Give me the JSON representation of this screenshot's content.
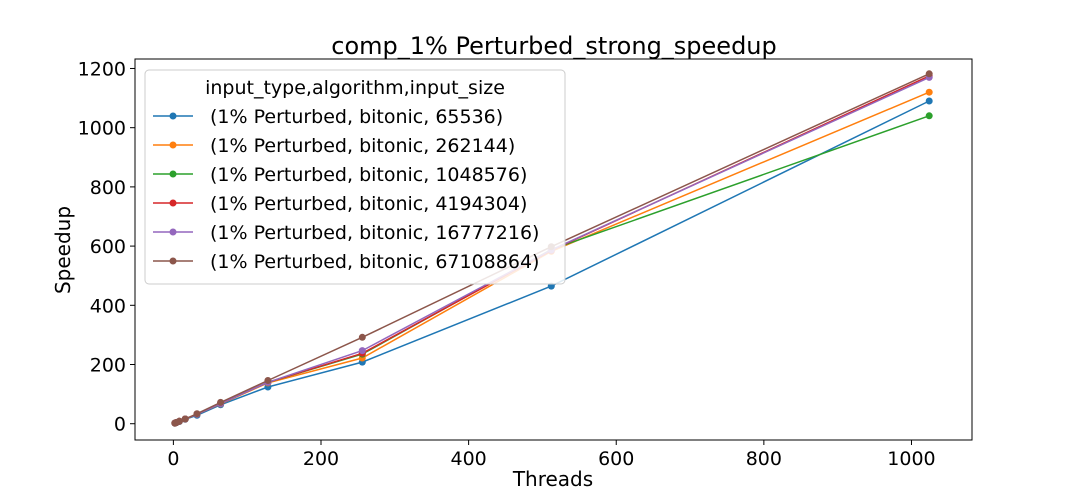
{
  "chart_data": {
    "type": "line",
    "title": "comp_1% Perturbed_strong_speedup",
    "xlabel": "Threads",
    "ylabel": "Speedup",
    "xlim": [
      -52,
      1082
    ],
    "ylim": [
      -55,
      1232
    ],
    "xticks": [
      0,
      200,
      400,
      600,
      800,
      1000
    ],
    "yticks": [
      0,
      200,
      400,
      600,
      800,
      1000,
      1200
    ],
    "x": [
      2,
      4,
      8,
      16,
      32,
      64,
      128,
      256,
      512,
      1024
    ],
    "legend": {
      "title": "input_type,algorithm,input_size",
      "placement": "upper left"
    },
    "series": [
      {
        "name": "(1% Perturbed, bitonic, 65536)",
        "color": "#1f77b4",
        "values": [
          1.9,
          3.8,
          7.5,
          14.8,
          28.5,
          64,
          124,
          208,
          465,
          1090
        ]
      },
      {
        "name": "(1% Perturbed, bitonic, 262144)",
        "color": "#ff7f0e",
        "values": [
          2,
          4,
          8,
          16,
          32,
          67,
          138,
          222,
          582,
          1120
        ]
      },
      {
        "name": "(1% Perturbed, bitonic, 1048576)",
        "color": "#2ca02c",
        "values": [
          2,
          4,
          8,
          16,
          32,
          68,
          140,
          235,
          588,
          1040
        ]
      },
      {
        "name": "(1% Perturbed, bitonic, 4194304)",
        "color": "#d62728",
        "values": [
          2,
          4,
          8,
          16,
          32,
          68,
          140,
          238,
          585,
          1175
        ]
      },
      {
        "name": "(1% Perturbed, bitonic, 16777216)",
        "color": "#9467bd",
        "values": [
          2,
          4,
          8,
          16,
          32,
          68,
          140,
          247,
          587,
          1170
        ]
      },
      {
        "name": "(1% Perturbed, bitonic, 67108864)",
        "color": "#8c564b",
        "values": [
          2,
          4,
          8,
          16,
          34,
          72,
          146,
          292,
          598,
          1182
        ]
      }
    ]
  }
}
